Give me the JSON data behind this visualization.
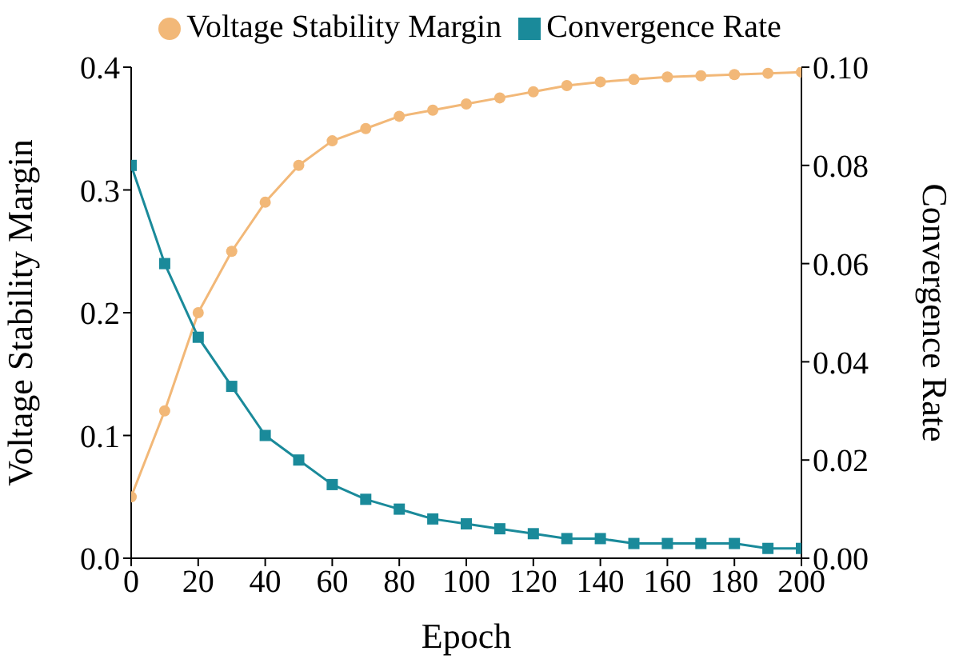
{
  "chart_data": {
    "type": "line",
    "xlabel": "Epoch",
    "ylabel": "Voltage Stability Margin",
    "y2label": "Convergence Rate",
    "x": [
      0,
      10,
      20,
      30,
      40,
      50,
      60,
      70,
      80,
      90,
      100,
      110,
      120,
      130,
      140,
      150,
      160,
      170,
      180,
      190,
      200
    ],
    "series": [
      {
        "name": "Voltage Stability Margin",
        "color": "#f2b878",
        "marker": "circle",
        "values": [
          0.05,
          0.12,
          0.2,
          0.25,
          0.29,
          0.32,
          0.34,
          0.35,
          0.36,
          0.365,
          0.37,
          0.375,
          0.38,
          0.385,
          0.388,
          0.39,
          0.392,
          0.393,
          0.394,
          0.395,
          0.396
        ]
      },
      {
        "name": "Convergence Rate",
        "color": "#1a8a9a",
        "marker": "square",
        "axis": "y2",
        "values": [
          0.08,
          0.06,
          0.045,
          0.035,
          0.025,
          0.02,
          0.015,
          0.012,
          0.01,
          0.008,
          0.007,
          0.006,
          0.005,
          0.004,
          0.004,
          0.003,
          0.003,
          0.003,
          0.003,
          0.002,
          0.002
        ]
      }
    ],
    "xlim": [
      0,
      200
    ],
    "xticks": [
      0,
      20,
      40,
      60,
      80,
      100,
      120,
      140,
      160,
      180,
      200
    ],
    "ylim": [
      0,
      0.4
    ],
    "yticks": [
      {
        "value": 0,
        "label": "0.0"
      },
      0.1,
      0.2,
      0.3,
      0.4
    ],
    "y2lim": [
      0,
      0.1
    ],
    "y2ticks": [
      {
        "value": 0,
        "label": "0.00"
      },
      0.02,
      0.04,
      0.06,
      0.08,
      {
        "value": 0.1,
        "label": "0.10"
      }
    ],
    "grid": false,
    "legend": "top",
    "line_style": "solid"
  }
}
